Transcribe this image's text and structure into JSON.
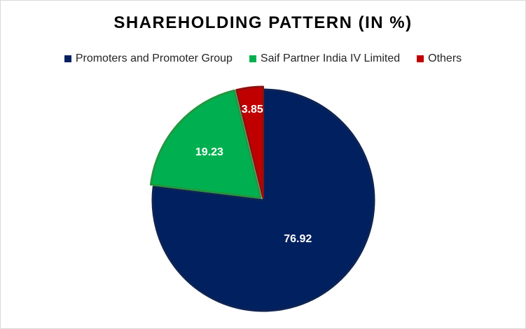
{
  "chart_data": {
    "type": "pie",
    "title": "SHAREHOLDING PATTERN (IN %)",
    "legend_position": "top",
    "slices": [
      {
        "name": "Promoters and Promoter Group",
        "value": 76.92,
        "label": "76.92",
        "color": "#002060",
        "stroke": "#0f2452"
      },
      {
        "name": "Saif Partner India IV Limited",
        "value": 19.23,
        "label": "19.23",
        "color": "#00b050",
        "stroke": "#23963f"
      },
      {
        "name": "Others",
        "value": 3.85,
        "label": "3.85",
        "color": "#c00000",
        "stroke": "#8f1010"
      }
    ]
  }
}
